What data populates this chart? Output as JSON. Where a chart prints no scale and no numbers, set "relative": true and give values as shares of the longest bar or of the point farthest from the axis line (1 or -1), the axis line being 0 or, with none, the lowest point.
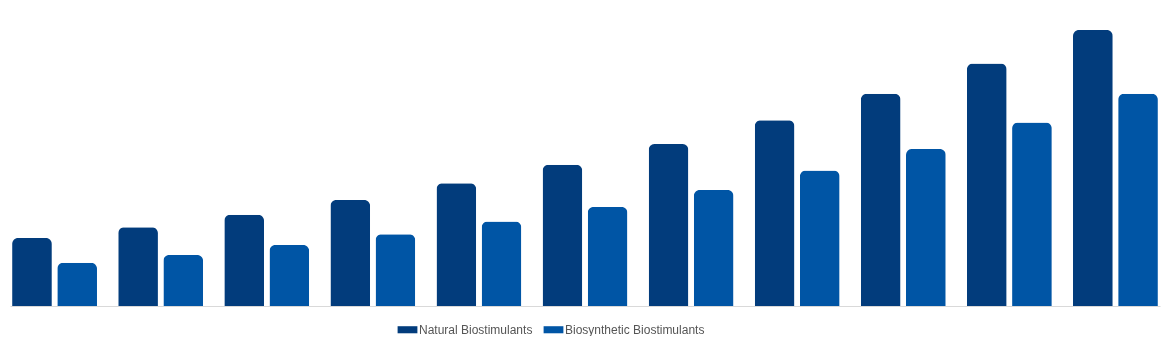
{
  "chart_data": {
    "type": "bar",
    "relative": true,
    "categories": [
      null,
      null,
      null,
      null,
      null,
      null,
      null,
      null,
      null,
      null,
      null
    ],
    "series": [
      {
        "name": "Natural Biostimulants",
        "color": "#023c7c",
        "values": [
          0.246,
          0.285,
          0.331,
          0.384,
          0.445,
          0.512,
          0.587,
          0.673,
          0.769,
          0.879,
          1
        ]
      },
      {
        "name": "Biosynthetic Biostimulants",
        "color": "#0055a5",
        "values": [
          0.157,
          0.185,
          0.221,
          0.26,
          0.306,
          0.359,
          0.42,
          0.491,
          0.569,
          0.665,
          0.769
        ]
      }
    ],
    "legend": "bottom"
  }
}
